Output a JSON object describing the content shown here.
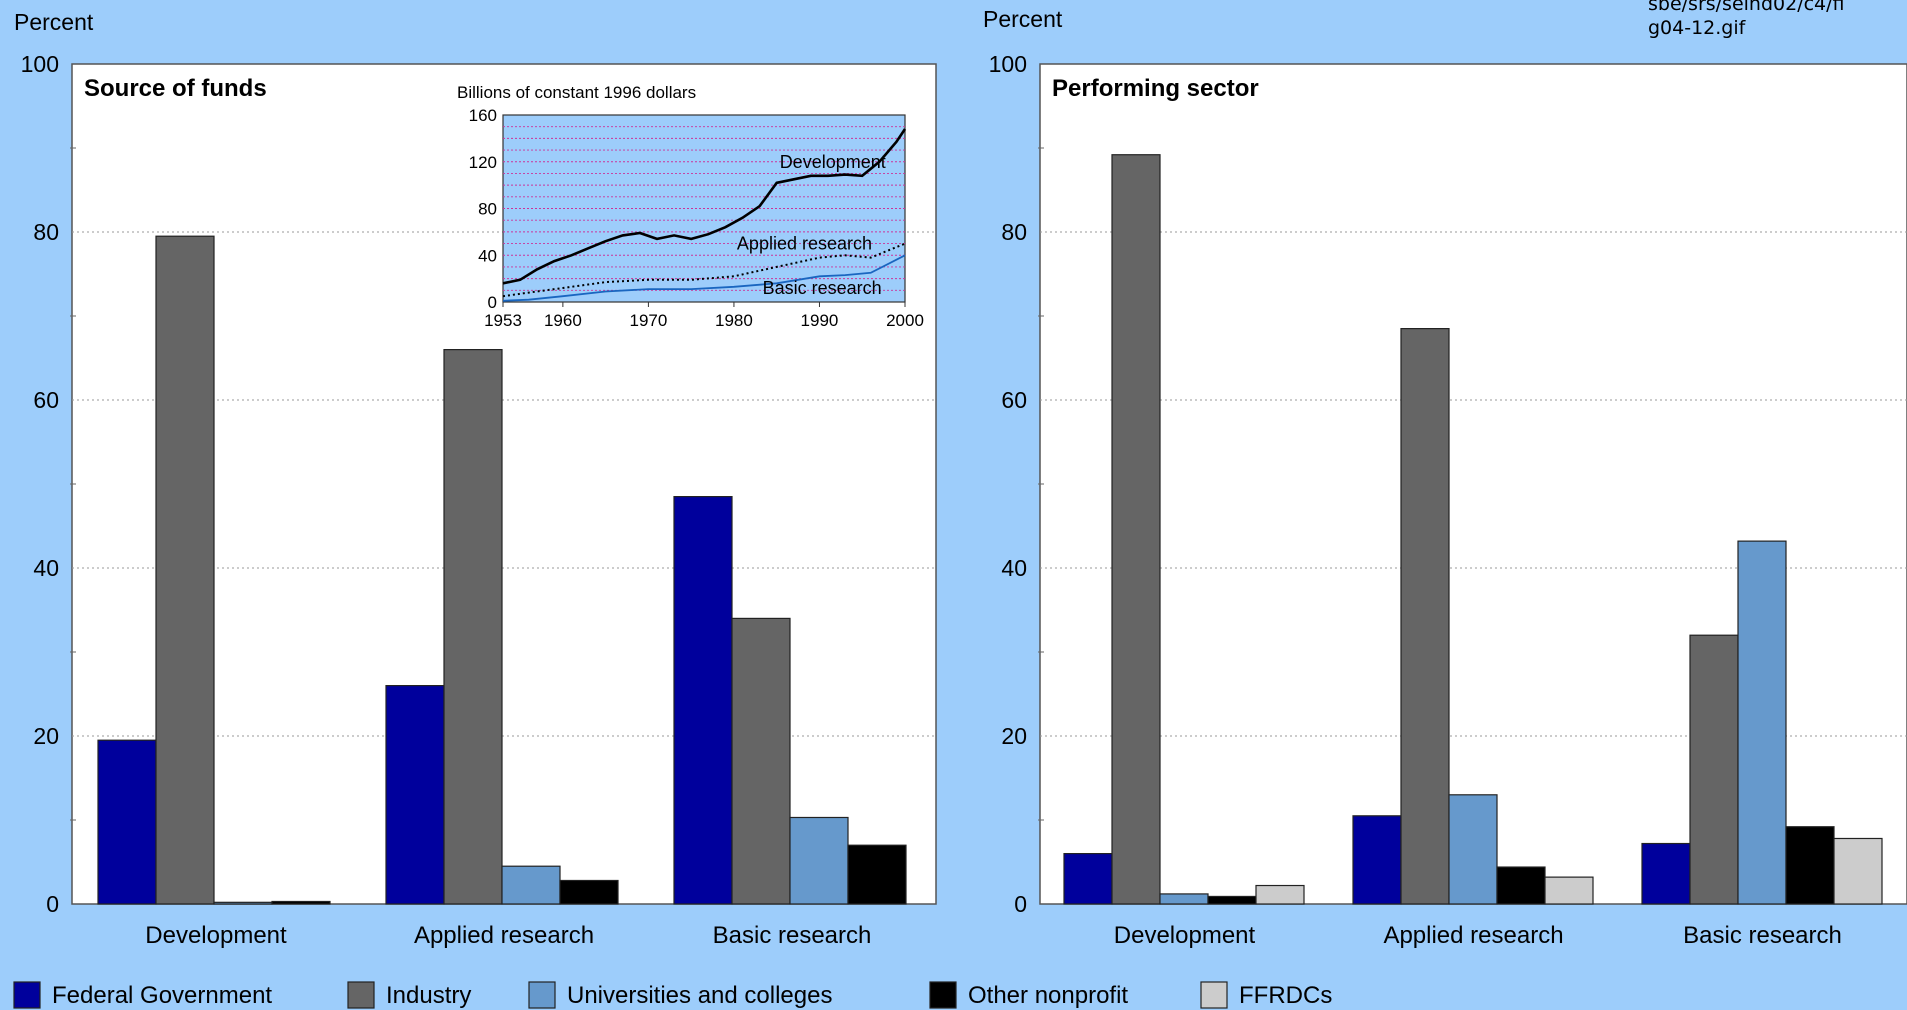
{
  "corner_note": "sbe/srs/seind02/c4/fi\ng04-12.gif",
  "colors": {
    "federal": "#00009c",
    "industry": "#656565",
    "universities": "#6699cc",
    "nonprofit": "#000000",
    "ffrdc": "#cccccc",
    "background": "#9dcdfb",
    "plot_bg": "#ffffff",
    "inset_bg": "#9dcdfb"
  },
  "legend": {
    "items": [
      {
        "key": "federal",
        "label": "Federal Government"
      },
      {
        "key": "industry",
        "label": "Industry"
      },
      {
        "key": "universities",
        "label": "Universities and colleges"
      },
      {
        "key": "nonprofit",
        "label": "Other nonprofit"
      },
      {
        "key": "ffrdc",
        "label": "FFRDCs"
      }
    ]
  },
  "chart_data": [
    {
      "type": "bar",
      "title": "Source of funds",
      "ylabel": "Percent",
      "ylim": [
        0,
        100
      ],
      "yticks": [
        0,
        20,
        40,
        60,
        80,
        100
      ],
      "grid": true,
      "categories": [
        "Development",
        "Applied research",
        "Basic research"
      ],
      "series": [
        {
          "key": "federal",
          "name": "Federal Government",
          "values": [
            19.5,
            26,
            48.5
          ]
        },
        {
          "key": "industry",
          "name": "Industry",
          "values": [
            79.5,
            66,
            34
          ]
        },
        {
          "key": "universities",
          "name": "Universities and colleges",
          "values": [
            0.2,
            4.5,
            10.3
          ]
        },
        {
          "key": "nonprofit",
          "name": "Other nonprofit",
          "values": [
            0.3,
            2.8,
            7
          ]
        }
      ]
    },
    {
      "type": "line",
      "inset": true,
      "title": "Billions of constant 1996 dollars",
      "ylim": [
        0,
        160
      ],
      "yticks": [
        0,
        40,
        80,
        120,
        160
      ],
      "xlim": [
        1953,
        2000
      ],
      "xticks": [
        1953,
        1960,
        1970,
        1980,
        1990,
        2000
      ],
      "grid": true,
      "series": [
        {
          "name": "Development",
          "style": "solid-thick",
          "x": [
            1953,
            1955,
            1957,
            1959,
            1961,
            1963,
            1965,
            1967,
            1969,
            1971,
            1973,
            1975,
            1977,
            1979,
            1981,
            1983,
            1985,
            1987,
            1989,
            1991,
            1993,
            1995,
            1997,
            1999,
            2000
          ],
          "y": [
            16,
            19,
            28,
            35,
            40,
            46,
            52,
            57,
            59,
            54,
            57,
            54,
            58,
            64,
            72,
            82,
            102,
            105,
            108,
            108,
            109,
            108,
            120,
            137,
            148
          ]
        },
        {
          "name": "Applied research",
          "style": "dotted",
          "x": [
            1953,
            1956,
            1960,
            1965,
            1970,
            1975,
            1980,
            1985,
            1990,
            1993,
            1996,
            2000
          ],
          "y": [
            5,
            8,
            12,
            17,
            19,
            19,
            22,
            30,
            38,
            40,
            38,
            50
          ]
        },
        {
          "name": "Basic research",
          "style": "solid-blue",
          "x": [
            1953,
            1956,
            1960,
            1965,
            1970,
            1975,
            1980,
            1985,
            1990,
            1993,
            1996,
            2000
          ],
          "y": [
            1,
            2,
            5,
            9,
            11,
            11,
            13,
            16,
            22,
            23,
            25,
            40
          ]
        }
      ],
      "labels": [
        {
          "text": "Development",
          "x": 1985,
          "y": 120
        },
        {
          "text": "Applied research",
          "x": 1980,
          "y": 50
        },
        {
          "text": "Basic research",
          "x": 1983,
          "y": 12
        }
      ]
    },
    {
      "type": "bar",
      "title": "Performing sector",
      "ylabel": "Percent",
      "ylim": [
        0,
        100
      ],
      "yticks": [
        0,
        20,
        40,
        60,
        80,
        100
      ],
      "grid": true,
      "categories": [
        "Development",
        "Applied research",
        "Basic research"
      ],
      "series": [
        {
          "key": "federal",
          "name": "Federal Government",
          "values": [
            6,
            10.5,
            7.2
          ]
        },
        {
          "key": "industry",
          "name": "Industry",
          "values": [
            89.2,
            68.5,
            32
          ]
        },
        {
          "key": "universities",
          "name": "Universities and colleges",
          "values": [
            1.2,
            13,
            43.2
          ]
        },
        {
          "key": "nonprofit",
          "name": "Other nonprofit",
          "values": [
            0.9,
            4.4,
            9.2
          ]
        },
        {
          "key": "ffrdc",
          "name": "FFRDCs",
          "values": [
            2.2,
            3.2,
            7.8
          ]
        }
      ]
    }
  ]
}
